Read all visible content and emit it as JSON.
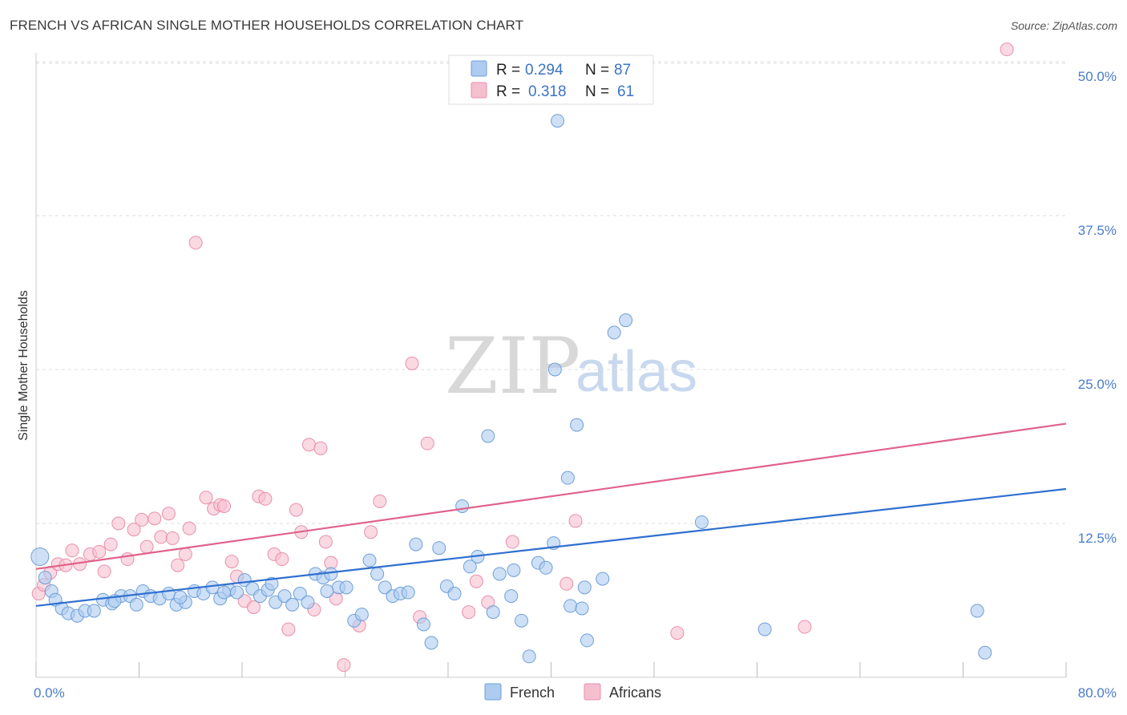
{
  "title": "FRENCH VS AFRICAN SINGLE MOTHER HOUSEHOLDS CORRELATION CHART",
  "source": "Source: ZipAtlas.com",
  "watermark": {
    "zip": "ZIP",
    "atlas": "atlas"
  },
  "colors": {
    "french_fill": "#aecbf0",
    "french_stroke": "#6f9fd8",
    "french_line": "#2f6fd0",
    "africans_fill": "#f6bfd0",
    "africans_stroke": "#e88fab",
    "africans_line": "#e0628b",
    "grid": "#dcdcdc",
    "tick_label": "#4a7cc9"
  },
  "legend": {
    "rows": [
      {
        "r_label": "R =",
        "r_value": "0.294",
        "n_label": "N =",
        "n_value": "87",
        "series": "french"
      },
      {
        "r_label": "R =",
        "r_value": "0.318",
        "n_label": "N =",
        "n_value": "61",
        "series": "africans"
      }
    ]
  },
  "chart_data": {
    "type": "scatter",
    "title": "FRENCH VS AFRICAN SINGLE MOTHER HOUSEHOLDS CORRELATION CHART",
    "xlabel": "",
    "ylabel": "Single Mother Households",
    "xlim": [
      0,
      80
    ],
    "ylim": [
      0,
      52
    ],
    "x_tick_labels": [
      "0.0%",
      "80.0%"
    ],
    "y_ticks": [
      12.5,
      25.0,
      37.5,
      50.0
    ],
    "y_tick_labels": [
      "12.5%",
      "25.0%",
      "37.5%",
      "50.0%"
    ],
    "grid": "horizontal dashed",
    "legend_position": "top-center",
    "series": [
      {
        "name": "French",
        "color": "#aecbf0",
        "trend": {
          "x": [
            0,
            80
          ],
          "y": [
            5.8,
            15.3
          ]
        },
        "points": [
          [
            0.3,
            9.8
          ],
          [
            0.7,
            8.1
          ],
          [
            1.2,
            7.0
          ],
          [
            1.5,
            6.3
          ],
          [
            2.0,
            5.6
          ],
          [
            2.5,
            5.2
          ],
          [
            3.2,
            5.0
          ],
          [
            3.8,
            5.4
          ],
          [
            4.5,
            5.4
          ],
          [
            5.2,
            6.3
          ],
          [
            5.9,
            6.0
          ],
          [
            6.6,
            6.6
          ],
          [
            7.3,
            6.6
          ],
          [
            7.8,
            5.9
          ],
          [
            8.3,
            7.0
          ],
          [
            8.9,
            6.6
          ],
          [
            9.6,
            6.4
          ],
          [
            10.3,
            6.8
          ],
          [
            10.9,
            5.9
          ],
          [
            11.6,
            6.1
          ],
          [
            12.3,
            7.0
          ],
          [
            13.0,
            6.8
          ],
          [
            13.7,
            7.3
          ],
          [
            14.3,
            6.4
          ],
          [
            15.0,
            7.1
          ],
          [
            15.6,
            6.9
          ],
          [
            16.2,
            7.9
          ],
          [
            16.8,
            7.2
          ],
          [
            17.4,
            6.6
          ],
          [
            18.0,
            7.1
          ],
          [
            18.6,
            6.1
          ],
          [
            19.3,
            6.6
          ],
          [
            19.9,
            5.9
          ],
          [
            20.5,
            6.8
          ],
          [
            21.1,
            6.1
          ],
          [
            21.7,
            8.4
          ],
          [
            22.3,
            8.1
          ],
          [
            22.9,
            8.4
          ],
          [
            23.5,
            7.3
          ],
          [
            24.1,
            7.3
          ],
          [
            24.7,
            4.6
          ],
          [
            25.3,
            5.1
          ],
          [
            25.9,
            9.5
          ],
          [
            26.5,
            8.4
          ],
          [
            27.1,
            7.3
          ],
          [
            27.7,
            6.6
          ],
          [
            28.3,
            6.8
          ],
          [
            28.9,
            6.9
          ],
          [
            29.5,
            10.8
          ],
          [
            30.1,
            4.3
          ],
          [
            30.7,
            2.8
          ],
          [
            31.3,
            10.5
          ],
          [
            31.9,
            7.4
          ],
          [
            32.5,
            6.8
          ],
          [
            33.1,
            13.9
          ],
          [
            33.7,
            9.0
          ],
          [
            34.3,
            9.8
          ],
          [
            35.1,
            19.6
          ],
          [
            35.5,
            5.3
          ],
          [
            36.0,
            8.4
          ],
          [
            37.1,
            8.7
          ],
          [
            37.7,
            4.6
          ],
          [
            38.3,
            1.7
          ],
          [
            39.0,
            9.3
          ],
          [
            39.6,
            8.9
          ],
          [
            40.2,
            10.9
          ],
          [
            41.5,
            5.8
          ],
          [
            42.4,
            5.6
          ],
          [
            42.8,
            3.0
          ],
          [
            40.5,
            45.2
          ],
          [
            40.3,
            25.0
          ],
          [
            41.3,
            16.2
          ],
          [
            42.0,
            20.5
          ],
          [
            42.6,
            7.3
          ],
          [
            44.0,
            8.0
          ],
          [
            44.9,
            28.0
          ],
          [
            45.8,
            29.0
          ],
          [
            51.7,
            12.6
          ],
          [
            56.6,
            3.9
          ],
          [
            73.1,
            5.4
          ],
          [
            73.7,
            2.0
          ],
          [
            36.9,
            6.6
          ],
          [
            22.6,
            7.0
          ],
          [
            18.3,
            7.6
          ],
          [
            14.6,
            6.9
          ],
          [
            11.2,
            6.5
          ],
          [
            6.1,
            6.2
          ]
        ]
      },
      {
        "name": "Africans",
        "color": "#f6bfd0",
        "trend": {
          "x": [
            0,
            80
          ],
          "y": [
            8.8,
            20.6
          ]
        },
        "points": [
          [
            0.2,
            6.8
          ],
          [
            0.6,
            7.5
          ],
          [
            1.1,
            8.5
          ],
          [
            1.7,
            9.2
          ],
          [
            2.3,
            9.1
          ],
          [
            2.8,
            10.3
          ],
          [
            3.4,
            9.2
          ],
          [
            4.2,
            10.0
          ],
          [
            4.9,
            10.2
          ],
          [
            5.3,
            8.6
          ],
          [
            5.8,
            10.8
          ],
          [
            6.4,
            12.5
          ],
          [
            7.1,
            9.6
          ],
          [
            7.6,
            12.0
          ],
          [
            8.2,
            12.8
          ],
          [
            8.6,
            10.6
          ],
          [
            9.2,
            12.9
          ],
          [
            9.7,
            11.4
          ],
          [
            10.3,
            13.3
          ],
          [
            10.6,
            11.3
          ],
          [
            11.0,
            9.1
          ],
          [
            11.6,
            10.0
          ],
          [
            11.9,
            12.1
          ],
          [
            12.4,
            35.3
          ],
          [
            13.2,
            14.6
          ],
          [
            13.8,
            13.7
          ],
          [
            14.3,
            14.0
          ],
          [
            14.6,
            13.9
          ],
          [
            15.2,
            9.4
          ],
          [
            15.6,
            8.2
          ],
          [
            16.2,
            6.2
          ],
          [
            16.9,
            5.7
          ],
          [
            17.3,
            14.7
          ],
          [
            17.8,
            14.5
          ],
          [
            18.5,
            10.0
          ],
          [
            19.1,
            9.6
          ],
          [
            19.6,
            3.9
          ],
          [
            20.2,
            13.6
          ],
          [
            20.6,
            11.8
          ],
          [
            21.2,
            18.9
          ],
          [
            21.6,
            5.5
          ],
          [
            22.1,
            18.6
          ],
          [
            22.5,
            11.0
          ],
          [
            22.9,
            9.3
          ],
          [
            23.3,
            6.4
          ],
          [
            23.9,
            1.0
          ],
          [
            25.1,
            4.2
          ],
          [
            26.0,
            11.8
          ],
          [
            26.7,
            14.3
          ],
          [
            29.2,
            25.5
          ],
          [
            29.8,
            4.9
          ],
          [
            30.4,
            19.0
          ],
          [
            33.6,
            5.3
          ],
          [
            34.2,
            7.8
          ],
          [
            35.1,
            6.1
          ],
          [
            37.0,
            11.0
          ],
          [
            41.2,
            7.6
          ],
          [
            41.9,
            12.7
          ],
          [
            49.8,
            3.6
          ],
          [
            59.7,
            4.1
          ],
          [
            75.4,
            51.0
          ]
        ]
      }
    ]
  },
  "bottom_legend": [
    {
      "label": "French",
      "series": "french"
    },
    {
      "label": "Africans",
      "series": "africans"
    }
  ]
}
